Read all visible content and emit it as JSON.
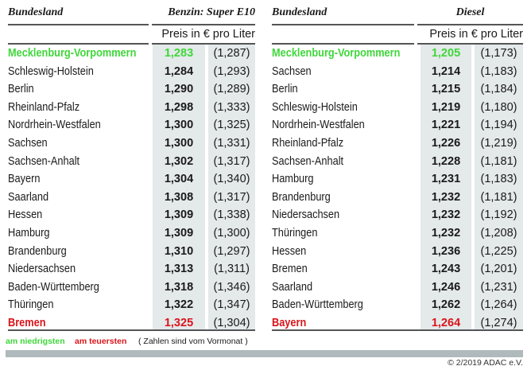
{
  "chart_data": [
    {
      "type": "table",
      "columns": [
        "Bundesland",
        "Benzin: Super E10",
        "Vormonat"
      ],
      "header_left": "Bundesland",
      "header_right": "Benzin: Super E10",
      "unit": "Preis in € pro Liter",
      "rows": [
        {
          "state": "Mecklenburg-Vorpommern",
          "price": "1,283",
          "prev": "(1,287)",
          "mark": "low"
        },
        {
          "state": "Schleswig-Holstein",
          "price": "1,284",
          "prev": "(1,293)"
        },
        {
          "state": "Berlin",
          "price": "1,290",
          "prev": "(1,289)"
        },
        {
          "state": "Rheinland-Pfalz",
          "price": "1,298",
          "prev": "(1,333)"
        },
        {
          "state": "Nordrhein-Westfalen",
          "price": "1,300",
          "prev": "(1,325)"
        },
        {
          "state": "Sachsen",
          "price": "1,300",
          "prev": "(1,331)"
        },
        {
          "state": "Sachsen-Anhalt",
          "price": "1,302",
          "prev": "(1,317)"
        },
        {
          "state": "Bayern",
          "price": "1,304",
          "prev": "(1,340)"
        },
        {
          "state": "Saarland",
          "price": "1,308",
          "prev": "(1,317)"
        },
        {
          "state": "Hessen",
          "price": "1,309",
          "prev": "(1,338)"
        },
        {
          "state": "Hamburg",
          "price": "1,309",
          "prev": "(1,300)"
        },
        {
          "state": "Brandenburg",
          "price": "1,310",
          "prev": "(1,297)"
        },
        {
          "state": "Niedersachsen",
          "price": "1,313",
          "prev": "(1,311)"
        },
        {
          "state": "Baden-Württemberg",
          "price": "1,318",
          "prev": "(1,346)"
        },
        {
          "state": "Thüringen",
          "price": "1,322",
          "prev": "(1,347)"
        },
        {
          "state": "Bremen",
          "price": "1,325",
          "prev": "(1,304)",
          "mark": "high"
        }
      ]
    },
    {
      "type": "table",
      "columns": [
        "Bundesland",
        "Diesel",
        "Vormonat"
      ],
      "header_left": "Bundesland",
      "header_right": "Diesel",
      "unit": "Preis in € pro Liter",
      "rows": [
        {
          "state": "Mecklenburg-Vorpommern",
          "price": "1,205",
          "prev": "(1,173)",
          "mark": "low"
        },
        {
          "state": "Sachsen",
          "price": "1,214",
          "prev": "(1,183)"
        },
        {
          "state": "Berlin",
          "price": "1,215",
          "prev": "(1,184)"
        },
        {
          "state": "Schleswig-Holstein",
          "price": "1,219",
          "prev": "(1,180)"
        },
        {
          "state": "Nordrhein-Westfalen",
          "price": "1,221",
          "prev": "(1,194)"
        },
        {
          "state": "Rheinland-Pfalz",
          "price": "1,226",
          "prev": "(1,219)"
        },
        {
          "state": "Sachsen-Anhalt",
          "price": "1,228",
          "prev": "(1,181)"
        },
        {
          "state": "Hamburg",
          "price": "1,231",
          "prev": "(1,183)"
        },
        {
          "state": "Brandenburg",
          "price": "1,232",
          "prev": "(1,181)"
        },
        {
          "state": "Niedersachsen",
          "price": "1,232",
          "prev": "(1,192)"
        },
        {
          "state": "Thüringen",
          "price": "1,232",
          "prev": "(1,208)"
        },
        {
          "state": "Hessen",
          "price": "1,236",
          "prev": "(1,225)"
        },
        {
          "state": "Bremen",
          "price": "1,243",
          "prev": "(1,201)"
        },
        {
          "state": "Saarland",
          "price": "1,246",
          "prev": "(1,231)"
        },
        {
          "state": "Baden-Württemberg",
          "price": "1,262",
          "prev": "(1,264)"
        },
        {
          "state": "Bayern",
          "price": "1,264",
          "prev": "(1,274)",
          "mark": "high"
        }
      ]
    }
  ],
  "colors": {
    "low": "#3fd63a",
    "high": "#d9151b",
    "shade": "#e4e9ea"
  },
  "legend": {
    "low": "am niedrigsten",
    "high": "am teuersten",
    "note": "( Zahlen sind vom Vormonat )"
  },
  "copyright": "© 2/2019 ADAC e.V."
}
